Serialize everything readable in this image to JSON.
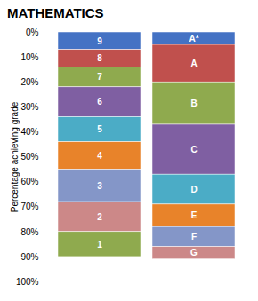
{
  "chart_data": {
    "type": "bar",
    "stacked": true,
    "title": "MATHEMATICS",
    "ylabel": "Percentage achieving grade",
    "categories": [
      null,
      null
    ],
    "stacks": [
      {
        "labels": [
          "9",
          "8",
          "7",
          "6",
          "5",
          "4",
          "3",
          "2",
          "1"
        ],
        "values": [
          7,
          7,
          8,
          12,
          10,
          11,
          13,
          12,
          10
        ],
        "colors": [
          "#4472c4",
          "#c0504d",
          "#8faa4e",
          "#7f5fa2",
          "#4bacc6",
          "#e8832a",
          "#8496c8",
          "#cc8888",
          "#8faa4e"
        ]
      },
      {
        "labels": [
          "A*",
          "A",
          "B",
          "C",
          "D",
          "E",
          "F",
          "G"
        ],
        "values": [
          5,
          15,
          17,
          20,
          12,
          9,
          8,
          5
        ],
        "colors": [
          "#4472c4",
          "#c0504d",
          "#8faa4e",
          "#7f5fa2",
          "#4bacc6",
          "#e8832a",
          "#8496c8",
          "#cc8888"
        ]
      }
    ],
    "ylim": [
      100,
      0
    ],
    "yticks": [
      {
        "value": 0,
        "label": "0%"
      },
      {
        "value": 10,
        "label": "10%"
      },
      {
        "value": 20,
        "label": "20%"
      },
      {
        "value": 30,
        "label": "30%"
      },
      {
        "value": 40,
        "label": "40%"
      },
      {
        "value": 50,
        "label": "50%"
      },
      {
        "value": 60,
        "label": "60%"
      },
      {
        "value": 70,
        "label": "70%"
      },
      {
        "value": 80,
        "label": "80%"
      },
      {
        "value": 90,
        "label": "90%"
      },
      {
        "value": 100,
        "label": "100%"
      }
    ],
    "tick_labels": "y"
  }
}
